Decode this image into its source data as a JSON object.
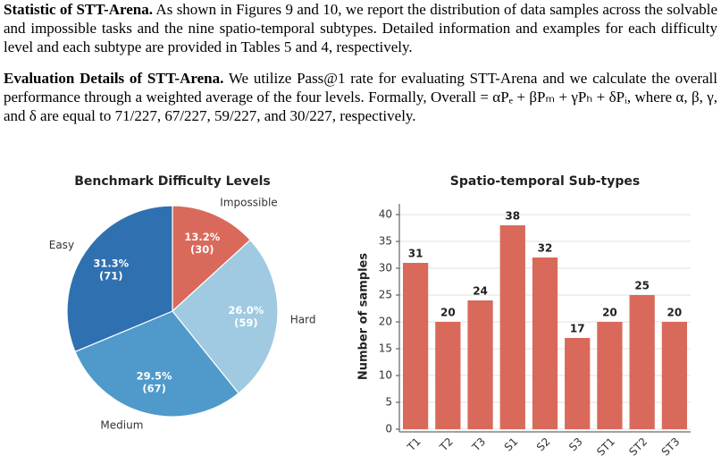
{
  "paper": {
    "paragraphs": [
      {
        "heading": "Statistic of STT-Arena.",
        "body": "As shown in Figures 9 and 10, we report the distribution of data samples across the solvable and impossible tasks and the nine spatio-temporal subtypes. Detailed information and examples for each difficulty level and each subtype are provided in Tables 5 and 4, respectively."
      },
      {
        "heading": "Evaluation Details of STT-Arena.",
        "body": "We utilize Pass@1 rate for evaluating STT-Arena and we calculate the overall performance through a weighted average of the four levels. Formally, Overall = αPₑ + βPₘ + γPₕ + δPᵢ, where α, β, γ, and δ are equal to 71/227, 67/227, 59/227, and 30/227, respectively."
      }
    ]
  },
  "chart_data": [
    {
      "type": "pie",
      "title": "Benchmark Difficulty Levels",
      "categories": [
        "Impossible",
        "Hard",
        "Medium",
        "Easy"
      ],
      "values": [
        30,
        59,
        67,
        71
      ],
      "value_labels": [
        [
          "13.2%",
          "(30)"
        ],
        [
          "26.0%",
          "(59)"
        ],
        [
          "29.5%",
          "(67)"
        ],
        [
          "31.3%",
          "(71)"
        ]
      ],
      "colors": [
        "#d9695a",
        "#9fcae1",
        "#4f9acb",
        "#2f70b1"
      ]
    },
    {
      "type": "bar",
      "title": "Spatio-temporal Sub-types",
      "y_label": "Number of samples",
      "categories": [
        "T1",
        "T2",
        "T3",
        "S1",
        "S2",
        "S3",
        "ST1",
        "ST2",
        "ST3"
      ],
      "values": [
        31,
        20,
        24,
        38,
        32,
        17,
        20,
        25,
        20
      ],
      "color": "#d9695a",
      "ylim": [
        0,
        42
      ],
      "yticks": [
        0,
        5,
        10,
        15,
        20,
        25,
        30,
        35,
        40
      ],
      "grid": true
    }
  ]
}
